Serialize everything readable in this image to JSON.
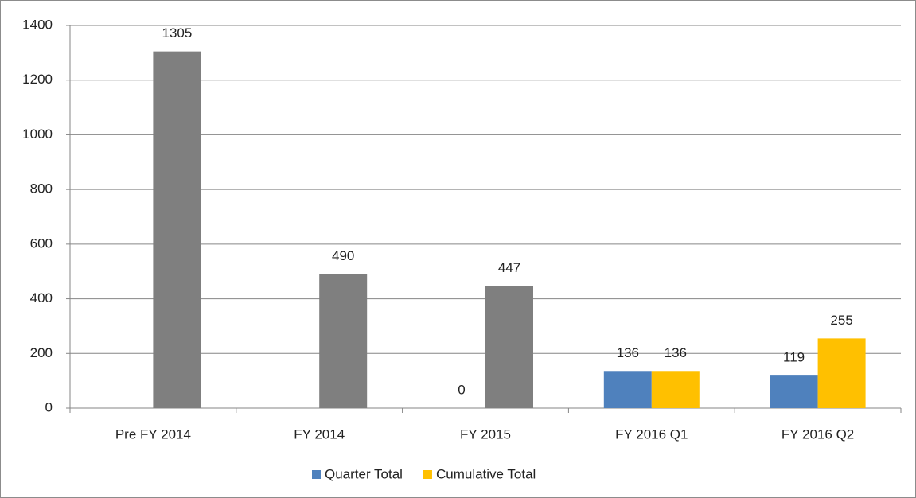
{
  "chart_data": {
    "type": "bar",
    "categories": [
      "Pre FY 2014",
      "FY 2014",
      "FY 2015",
      "FY 2016 Q1",
      "FY 2016 Q2"
    ],
    "series": [
      {
        "name": "Quarter Total",
        "color": "#4f81bd",
        "values": [
          null,
          null,
          0,
          136,
          119
        ]
      },
      {
        "name": "Cumulative Total",
        "color": "#ffc000",
        "point_colors": [
          "#7f7f7f",
          "#7f7f7f",
          "#7f7f7f",
          "#ffc000",
          "#ffc000"
        ],
        "values": [
          1305,
          490,
          447,
          136,
          255
        ]
      }
    ],
    "ylim": [
      0,
      1400
    ],
    "yticks": [
      0,
      200,
      400,
      600,
      800,
      1000,
      1200,
      1400
    ],
    "grid": true,
    "legend": "bottom"
  }
}
